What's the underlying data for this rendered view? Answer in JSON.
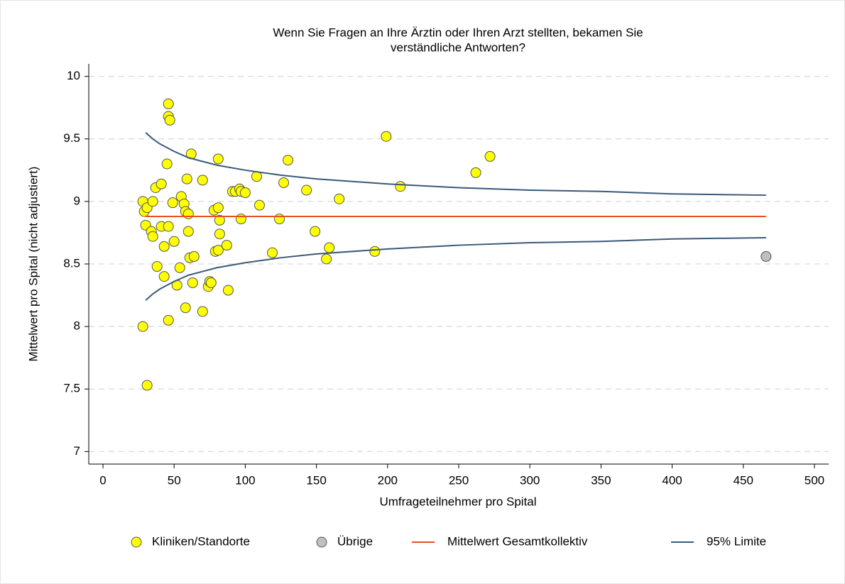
{
  "chart_data": {
    "type": "scatter",
    "title": [
      "Wenn Sie Fragen an Ihre Ärztin oder Ihren Arzt stellten, bekamen Sie",
      "verständliche Antworten?"
    ],
    "x_label": "Umfrageteilnehmer pro Spital",
    "y_label": "Mittelwert pro Spital (nicht adjustiert)",
    "xlim": [
      -10,
      510
    ],
    "ylim": [
      6.9,
      10.1
    ],
    "xticks": [
      0,
      50,
      100,
      150,
      200,
      250,
      300,
      350,
      400,
      450,
      500
    ],
    "yticks": [
      7,
      7.5,
      8,
      8.5,
      9,
      9.5,
      10
    ],
    "grid": true,
    "legend": "bottom",
    "series": [
      {
        "name": "Kliniken/Standorte",
        "type": "scatter",
        "color": "#ffff00",
        "x": [
          28,
          29,
          31,
          30,
          28,
          31,
          34,
          35,
          35,
          37,
          41,
          38,
          41,
          43,
          43,
          45,
          46,
          46,
          47,
          46,
          46,
          49,
          50,
          52,
          54,
          55,
          57,
          58,
          59,
          60,
          60,
          61,
          58,
          62,
          64,
          63,
          70,
          70,
          74,
          75,
          76,
          78,
          79,
          81,
          81,
          81,
          82,
          82,
          87,
          88,
          91,
          93,
          96,
          97,
          100,
          97,
          108,
          110,
          119,
          124,
          127,
          130,
          143,
          149,
          159,
          157,
          166,
          191,
          199,
          209,
          262,
          272
        ],
        "values": [
          9.0,
          8.92,
          8.95,
          8.81,
          8.0,
          7.53,
          8.76,
          8.72,
          9.0,
          9.11,
          9.14,
          8.48,
          8.8,
          8.64,
          8.4,
          9.3,
          9.78,
          9.68,
          9.65,
          8.8,
          8.05,
          8.99,
          8.68,
          8.33,
          8.47,
          9.04,
          8.98,
          8.92,
          9.18,
          8.9,
          8.76,
          8.55,
          8.15,
          9.38,
          8.56,
          8.35,
          9.17,
          8.12,
          8.32,
          8.36,
          8.35,
          8.93,
          8.6,
          8.95,
          9.34,
          8.61,
          8.85,
          8.74,
          8.65,
          8.29,
          9.08,
          9.08,
          9.1,
          9.08,
          9.07,
          8.86,
          9.2,
          8.97,
          8.59,
          8.86,
          9.15,
          9.33,
          9.09,
          8.76,
          8.63,
          8.54,
          9.02,
          8.6,
          9.52,
          9.12,
          9.23,
          9.36
        ]
      },
      {
        "name": "Übrige",
        "type": "scatter",
        "color": "#c0c0c0",
        "x": [
          466
        ],
        "values": [
          8.56
        ]
      },
      {
        "name": "Mittelwert Gesamtkollektiv",
        "type": "line",
        "color": "#e8501e",
        "x": [
          30,
          466
        ],
        "values": [
          8.88,
          8.88
        ]
      },
      {
        "name": "95% Limite",
        "type": "band-lines",
        "color": "#3a5a78",
        "x": [
          30,
          35,
          40,
          50,
          60,
          70,
          80,
          100,
          125,
          150,
          200,
          250,
          300,
          350,
          400,
          466
        ],
        "values": [
          9.55,
          9.5,
          9.46,
          9.4,
          9.35,
          9.32,
          9.29,
          9.25,
          9.21,
          9.18,
          9.14,
          9.11,
          9.09,
          9.08,
          9.06,
          9.05
        ],
        "lower": [
          8.21,
          8.26,
          8.3,
          8.36,
          8.41,
          8.44,
          8.47,
          8.51,
          8.55,
          8.58,
          8.62,
          8.65,
          8.67,
          8.68,
          8.7,
          8.71
        ]
      }
    ]
  }
}
